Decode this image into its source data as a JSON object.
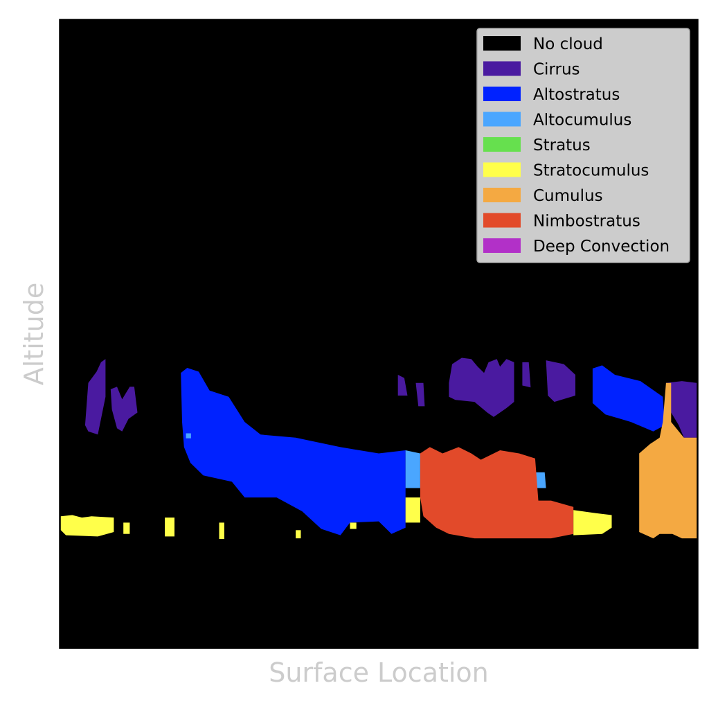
{
  "chart_data": {
    "type": "heatmap",
    "title": "",
    "xlabel": "Surface Location",
    "ylabel": "Altitude",
    "grid": false,
    "legend_position": "top-right",
    "background_color": "#000000",
    "legend": [
      {
        "label": "No cloud",
        "color": "#000000"
      },
      {
        "label": "Cirrus",
        "color": "#4a1aa0"
      },
      {
        "label": "Altostratus",
        "color": "#0022ff"
      },
      {
        "label": "Altocumulus",
        "color": "#4aa6ff"
      },
      {
        "label": "Stratus",
        "color": "#66e04e"
      },
      {
        "label": "Stratocumulus",
        "color": "#ffff4a"
      },
      {
        "label": "Cumulus",
        "color": "#f4a942"
      },
      {
        "label": "Nimbostratus",
        "color": "#e24a2a"
      },
      {
        "label": "Deep Convection",
        "color": "#b230c8"
      }
    ],
    "regions": [
      {
        "type": "Cirrus",
        "points": [
          [
            0.04,
            0.645
          ],
          [
            0.045,
            0.578
          ],
          [
            0.058,
            0.56
          ],
          [
            0.065,
            0.545
          ],
          [
            0.072,
            0.54
          ],
          [
            0.072,
            0.6
          ],
          [
            0.06,
            0.66
          ],
          [
            0.045,
            0.655
          ]
        ]
      },
      {
        "type": "Cirrus",
        "points": [
          [
            0.08,
            0.588
          ],
          [
            0.09,
            0.584
          ],
          [
            0.098,
            0.604
          ],
          [
            0.11,
            0.584
          ],
          [
            0.117,
            0.584
          ],
          [
            0.122,
            0.625
          ],
          [
            0.108,
            0.635
          ],
          [
            0.098,
            0.655
          ],
          [
            0.09,
            0.65
          ],
          [
            0.082,
            0.62
          ]
        ]
      },
      {
        "type": "Cirrus",
        "points": [
          [
            0.53,
            0.565
          ],
          [
            0.54,
            0.57
          ],
          [
            0.545,
            0.598
          ],
          [
            0.53,
            0.598
          ]
        ]
      },
      {
        "type": "Cirrus",
        "points": [
          [
            0.558,
            0.578
          ],
          [
            0.57,
            0.578
          ],
          [
            0.572,
            0.615
          ],
          [
            0.562,
            0.615
          ]
        ]
      },
      {
        "type": "Cirrus",
        "points": [
          [
            0.61,
            0.578
          ],
          [
            0.615,
            0.548
          ],
          [
            0.63,
            0.538
          ],
          [
            0.645,
            0.54
          ],
          [
            0.655,
            0.552
          ],
          [
            0.665,
            0.562
          ],
          [
            0.672,
            0.545
          ],
          [
            0.685,
            0.54
          ],
          [
            0.69,
            0.552
          ],
          [
            0.7,
            0.54
          ],
          [
            0.712,
            0.545
          ],
          [
            0.712,
            0.608
          ],
          [
            0.7,
            0.618
          ],
          [
            0.68,
            0.632
          ],
          [
            0.67,
            0.625
          ],
          [
            0.65,
            0.608
          ],
          [
            0.62,
            0.605
          ],
          [
            0.61,
            0.6
          ]
        ]
      },
      {
        "type": "Cirrus",
        "points": [
          [
            0.725,
            0.545
          ],
          [
            0.735,
            0.545
          ],
          [
            0.738,
            0.585
          ],
          [
            0.725,
            0.582
          ]
        ]
      },
      {
        "type": "Cirrus",
        "points": [
          [
            0.762,
            0.542
          ],
          [
            0.79,
            0.548
          ],
          [
            0.808,
            0.565
          ],
          [
            0.808,
            0.598
          ],
          [
            0.775,
            0.608
          ],
          [
            0.765,
            0.598
          ]
        ]
      },
      {
        "type": "Cirrus",
        "points": [
          [
            0.95,
            0.578
          ],
          [
            0.975,
            0.575
          ],
          [
            0.998,
            0.578
          ],
          [
            0.998,
            0.665
          ],
          [
            0.978,
            0.665
          ],
          [
            0.97,
            0.645
          ],
          [
            0.955,
            0.62
          ]
        ]
      },
      {
        "type": "Altostratus",
        "points": [
          [
            0.19,
            0.562
          ],
          [
            0.2,
            0.554
          ],
          [
            0.218,
            0.56
          ],
          [
            0.235,
            0.59
          ],
          [
            0.265,
            0.6
          ],
          [
            0.29,
            0.64
          ],
          [
            0.315,
            0.66
          ],
          [
            0.37,
            0.665
          ],
          [
            0.44,
            0.68
          ],
          [
            0.5,
            0.69
          ],
          [
            0.542,
            0.685
          ],
          [
            0.542,
            0.808
          ],
          [
            0.52,
            0.818
          ],
          [
            0.5,
            0.798
          ],
          [
            0.455,
            0.8
          ],
          [
            0.44,
            0.82
          ],
          [
            0.41,
            0.81
          ],
          [
            0.38,
            0.782
          ],
          [
            0.34,
            0.76
          ],
          [
            0.29,
            0.76
          ],
          [
            0.27,
            0.735
          ],
          [
            0.225,
            0.725
          ],
          [
            0.205,
            0.705
          ],
          [
            0.195,
            0.68
          ],
          [
            0.192,
            0.64
          ]
        ]
      },
      {
        "type": "Altostratus",
        "points": [
          [
            0.835,
            0.555
          ],
          [
            0.85,
            0.55
          ],
          [
            0.87,
            0.565
          ],
          [
            0.91,
            0.575
          ],
          [
            0.945,
            0.6
          ],
          [
            0.948,
            0.645
          ],
          [
            0.93,
            0.655
          ],
          [
            0.895,
            0.64
          ],
          [
            0.855,
            0.628
          ],
          [
            0.835,
            0.61
          ]
        ]
      },
      {
        "type": "Altocumulus",
        "points": [
          [
            0.542,
            0.685
          ],
          [
            0.565,
            0.69
          ],
          [
            0.565,
            0.745
          ],
          [
            0.542,
            0.745
          ]
        ]
      },
      {
        "type": "Altocumulus",
        "points": [
          [
            0.198,
            0.658
          ],
          [
            0.206,
            0.658
          ],
          [
            0.206,
            0.666
          ],
          [
            0.198,
            0.666
          ]
        ]
      },
      {
        "type": "Altocumulus",
        "points": [
          [
            0.65,
            0.708
          ],
          [
            0.675,
            0.708
          ],
          [
            0.675,
            0.718
          ],
          [
            0.65,
            0.718
          ]
        ]
      },
      {
        "type": "Altocumulus",
        "points": [
          [
            0.745,
            0.72
          ],
          [
            0.76,
            0.72
          ],
          [
            0.762,
            0.745
          ],
          [
            0.748,
            0.745
          ]
        ]
      },
      {
        "type": "Nimbostratus",
        "points": [
          [
            0.565,
            0.69
          ],
          [
            0.58,
            0.68
          ],
          [
            0.6,
            0.69
          ],
          [
            0.625,
            0.68
          ],
          [
            0.645,
            0.69
          ],
          [
            0.66,
            0.7
          ],
          [
            0.69,
            0.685
          ],
          [
            0.72,
            0.69
          ],
          [
            0.745,
            0.698
          ],
          [
            0.75,
            0.765
          ],
          [
            0.77,
            0.765
          ],
          [
            0.805,
            0.775
          ],
          [
            0.805,
            0.818
          ],
          [
            0.77,
            0.825
          ],
          [
            0.73,
            0.825
          ],
          [
            0.68,
            0.825
          ],
          [
            0.65,
            0.825
          ],
          [
            0.61,
            0.818
          ],
          [
            0.59,
            0.808
          ],
          [
            0.57,
            0.79
          ],
          [
            0.565,
            0.76
          ]
        ]
      },
      {
        "type": "Stratocumulus",
        "points": [
          [
            0.002,
            0.79
          ],
          [
            0.02,
            0.788
          ],
          [
            0.035,
            0.792
          ],
          [
            0.05,
            0.79
          ],
          [
            0.085,
            0.792
          ],
          [
            0.085,
            0.815
          ],
          [
            0.06,
            0.822
          ],
          [
            0.01,
            0.82
          ],
          [
            0.002,
            0.812
          ]
        ]
      },
      {
        "type": "Stratocumulus",
        "points": [
          [
            0.1,
            0.8
          ],
          [
            0.11,
            0.8
          ],
          [
            0.11,
            0.818
          ],
          [
            0.1,
            0.818
          ]
        ]
      },
      {
        "type": "Stratocumulus",
        "points": [
          [
            0.165,
            0.792
          ],
          [
            0.18,
            0.792
          ],
          [
            0.18,
            0.822
          ],
          [
            0.165,
            0.822
          ]
        ]
      },
      {
        "type": "Stratocumulus",
        "points": [
          [
            0.25,
            0.8
          ],
          [
            0.258,
            0.8
          ],
          [
            0.258,
            0.826
          ],
          [
            0.25,
            0.826
          ]
        ]
      },
      {
        "type": "Stratocumulus",
        "points": [
          [
            0.37,
            0.812
          ],
          [
            0.378,
            0.812
          ],
          [
            0.378,
            0.825
          ],
          [
            0.37,
            0.825
          ]
        ]
      },
      {
        "type": "Stratocumulus",
        "points": [
          [
            0.455,
            0.8
          ],
          [
            0.465,
            0.8
          ],
          [
            0.465,
            0.81
          ],
          [
            0.455,
            0.81
          ]
        ]
      },
      {
        "type": "Stratocumulus",
        "points": [
          [
            0.542,
            0.76
          ],
          [
            0.565,
            0.76
          ],
          [
            0.565,
            0.8
          ],
          [
            0.542,
            0.8
          ]
        ]
      },
      {
        "type": "Stratocumulus",
        "points": [
          [
            0.805,
            0.78
          ],
          [
            0.84,
            0.785
          ],
          [
            0.865,
            0.788
          ],
          [
            0.865,
            0.808
          ],
          [
            0.85,
            0.818
          ],
          [
            0.805,
            0.82
          ]
        ]
      },
      {
        "type": "Cumulus",
        "points": [
          [
            0.908,
            0.69
          ],
          [
            0.925,
            0.675
          ],
          [
            0.94,
            0.665
          ],
          [
            0.945,
            0.64
          ],
          [
            0.95,
            0.578
          ],
          [
            0.958,
            0.578
          ],
          [
            0.958,
            0.64
          ],
          [
            0.978,
            0.665
          ],
          [
            0.998,
            0.665
          ],
          [
            0.998,
            0.825
          ],
          [
            0.975,
            0.825
          ],
          [
            0.96,
            0.818
          ],
          [
            0.94,
            0.818
          ],
          [
            0.93,
            0.825
          ],
          [
            0.908,
            0.815
          ]
        ]
      }
    ]
  }
}
